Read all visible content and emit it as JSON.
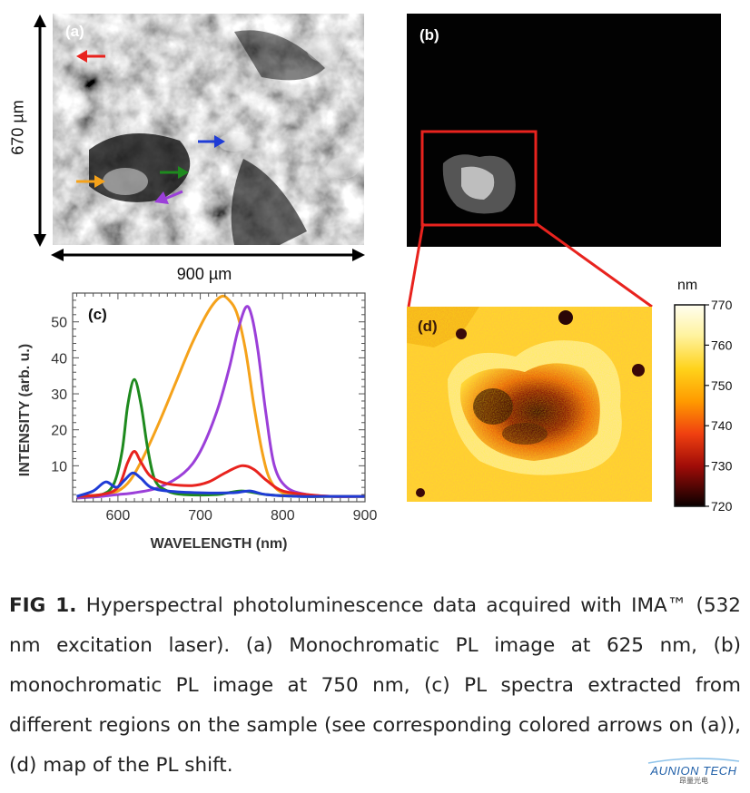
{
  "panel_a": {
    "label": "(a)",
    "width_label": "900 µm",
    "height_label": "670 µm",
    "arrow_colors": [
      "#e8231e",
      "#1f3cd6",
      "#f5a21a",
      "#1e8a1e",
      "#9b3fd9"
    ]
  },
  "panel_b": {
    "label": "(b)"
  },
  "panel_c": {
    "label": "(c)"
  },
  "panel_d": {
    "label": "(d)"
  },
  "colorbar": {
    "unit": "nm",
    "ticks": [
      "770",
      "760",
      "750",
      "740",
      "730",
      "720"
    ],
    "range": [
      720,
      770
    ]
  },
  "chart_data": {
    "type": "line",
    "title": "",
    "xlabel": "WAVELENGTH (nm)",
    "ylabel": "INTENSITY (arb. u.)",
    "xlim": [
      545,
      900
    ],
    "ylim": [
      0,
      58
    ],
    "xticks": [
      600,
      700,
      800,
      900
    ],
    "yticks": [
      10,
      20,
      30,
      40,
      50
    ],
    "grid": false,
    "series": [
      {
        "color": "#f5a21a",
        "x": [
          550,
          580,
          600,
          615,
          630,
          650,
          670,
          690,
          710,
          725,
          735,
          745,
          755,
          765,
          775,
          785,
          800,
          830,
          860,
          900
        ],
        "y": [
          1.5,
          2,
          3,
          6,
          12,
          22,
          33,
          44,
          53,
          57,
          56,
          52,
          42,
          27,
          14,
          6,
          2.5,
          1.5,
          1.5,
          1.5
        ]
      },
      {
        "color": "#9b3fd9",
        "x": [
          550,
          580,
          600,
          620,
          650,
          680,
          700,
          720,
          735,
          745,
          755,
          762,
          770,
          780,
          790,
          805,
          830,
          860,
          900
        ],
        "y": [
          1,
          1.5,
          2,
          2.5,
          4,
          8,
          14,
          25,
          37,
          47,
          54,
          52,
          42,
          24,
          10,
          4,
          2,
          1.5,
          1.5
        ]
      },
      {
        "color": "#1e8a1e",
        "x": [
          550,
          580,
          595,
          605,
          612,
          620,
          628,
          636,
          645,
          660,
          680,
          720,
          750,
          780,
          820,
          860,
          900
        ],
        "y": [
          1.5,
          2,
          5,
          14,
          27,
          34,
          27,
          15,
          6,
          3,
          2,
          2,
          3,
          2,
          1.5,
          1.5,
          1.5
        ]
      },
      {
        "color": "#e8231e",
        "x": [
          550,
          580,
          600,
          612,
          620,
          628,
          640,
          660,
          690,
          710,
          730,
          750,
          765,
          780,
          800,
          830,
          860,
          900
        ],
        "y": [
          1.5,
          2,
          4,
          11,
          14,
          11,
          7,
          5,
          4.5,
          5.5,
          8,
          10,
          9,
          6,
          3,
          2,
          1.5,
          1.5
        ]
      },
      {
        "color": "#1f3cd6",
        "x": [
          550,
          570,
          585,
          598,
          608,
          618,
          628,
          640,
          660,
          700,
          740,
          760,
          780,
          820,
          860,
          900
        ],
        "y": [
          1.5,
          3,
          5.5,
          4,
          6,
          8,
          6.5,
          4,
          3,
          2.5,
          2.5,
          3,
          2,
          1.5,
          1.5,
          1.5
        ]
      }
    ]
  },
  "caption": {
    "fig_label": "FIG 1.",
    "text": "Hyperspectral photoluminescence data acquired with IMA™ (532 nm excitation laser). (a) Monochromatic PL image at 625 nm, (b) monochromatic PL image at 750 nm, (c) PL spectra extracted from different regions on the sample (see corresponding colored arrows on (a)), (d) map of the PL shift."
  },
  "logo": {
    "text": "AUNION TECH",
    "subtext": "昂量光电"
  }
}
